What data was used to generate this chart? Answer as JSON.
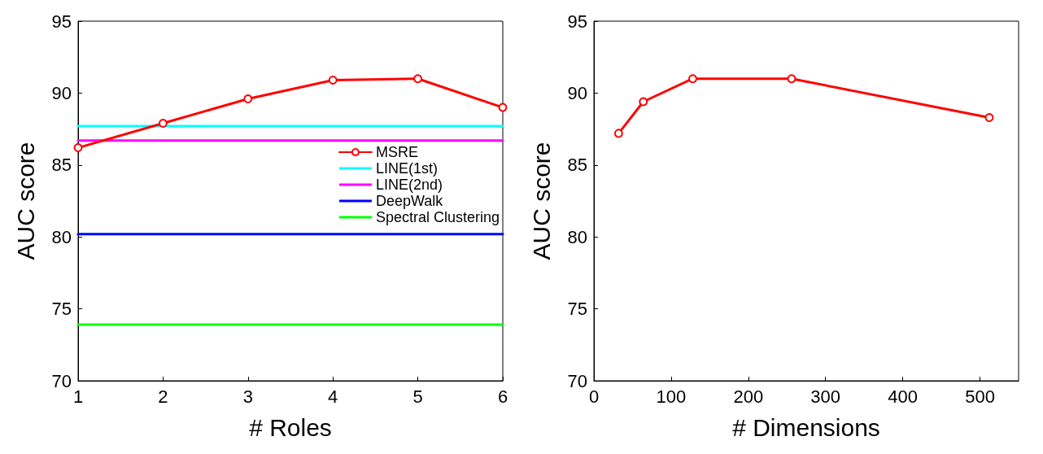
{
  "chart_data": [
    {
      "type": "line",
      "xlabel": "# Roles",
      "ylabel": "AUC score",
      "x": [
        1,
        2,
        3,
        4,
        5,
        6
      ],
      "xlim": [
        1,
        6
      ],
      "xticks": [
        1,
        2,
        3,
        4,
        5,
        6
      ],
      "ylim": [
        70,
        95
      ],
      "yticks": [
        70,
        75,
        80,
        85,
        90,
        95
      ],
      "grid": false,
      "legend": "right",
      "series": [
        {
          "name": "MSRE",
          "color": "#ff0000",
          "marker": "circle",
          "values": [
            86.2,
            87.9,
            89.6,
            90.9,
            91.0,
            89.0
          ]
        },
        {
          "name": "LINE(1st)",
          "color": "#00ffff",
          "marker": "none",
          "values": [
            87.7,
            87.7,
            87.7,
            87.7,
            87.7,
            87.7
          ]
        },
        {
          "name": "LINE(2nd)",
          "color": "#ff00ff",
          "marker": "none",
          "values": [
            86.7,
            86.7,
            86.7,
            86.7,
            86.7,
            86.7
          ]
        },
        {
          "name": "DeepWalk",
          "color": "#0000ff",
          "marker": "none",
          "values": [
            80.2,
            80.2,
            80.2,
            80.2,
            80.2,
            80.2
          ]
        },
        {
          "name": "Spectral Clustering",
          "color": "#00ff00",
          "marker": "none",
          "values": [
            73.9,
            73.9,
            73.9,
            73.9,
            73.9,
            73.9
          ]
        }
      ]
    },
    {
      "type": "line",
      "xlabel": "# Dimensions",
      "ylabel": "AUC score",
      "x": [
        32,
        64,
        128,
        256,
        512
      ],
      "xlim": [
        0,
        550
      ],
      "xticks": [
        0,
        100,
        200,
        300,
        400,
        500
      ],
      "ylim": [
        70,
        95
      ],
      "yticks": [
        70,
        75,
        80,
        85,
        90,
        95
      ],
      "grid": false,
      "legend": false,
      "marker": "circle",
      "series": [
        {
          "color": "#ff0000",
          "values": [
            87.2,
            89.4,
            91.0,
            91.0,
            88.3
          ]
        }
      ]
    }
  ]
}
